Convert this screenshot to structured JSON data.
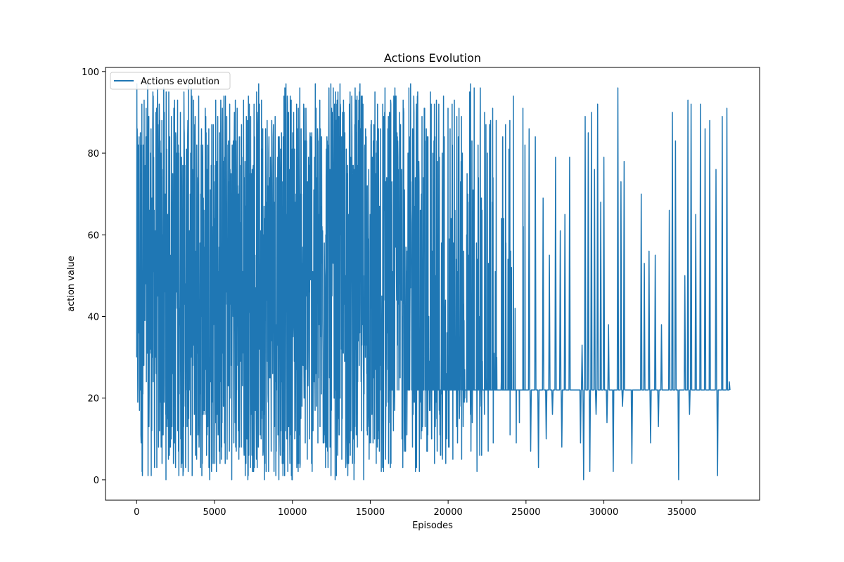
{
  "chart_data": {
    "type": "line",
    "title": "Actions Evolution",
    "xlabel": "Episodes",
    "ylabel": "action value",
    "xlim": [
      -2000,
      40000
    ],
    "ylim": [
      -5,
      101
    ],
    "xticks": [
      0,
      5000,
      10000,
      15000,
      20000,
      25000,
      30000,
      35000
    ],
    "yticks": [
      0,
      20,
      40,
      60,
      80,
      100
    ],
    "grid": false,
    "legend": {
      "placement": "top-left",
      "entries": [
        "Actions evolution"
      ]
    },
    "series": [
      {
        "name": "Actions evolution",
        "color": "#1f77b4",
        "x_range": [
          0,
          38100
        ],
        "y_range": [
          0,
          97
        ],
        "dominant_value": 22,
        "description_points": {
          "x": [
            0,
            2500,
            5000,
            7500,
            10000,
            12500,
            15000,
            15500,
            17500,
            20000,
            22500,
            25000,
            27500,
            30000,
            32500,
            35000,
            37500,
            38100
          ],
          "y_max": [
            97,
            97,
            97,
            97,
            97,
            97,
            97,
            97,
            97,
            97,
            97,
            96,
            95,
            96,
            80,
            93,
            92,
            91
          ],
          "y_min": [
            0,
            0,
            0,
            0,
            0,
            0,
            0,
            0,
            1,
            1,
            1,
            3,
            8,
            2,
            4,
            0,
            1,
            22
          ]
        },
        "spikes": [
          [
            25200,
            86
          ],
          [
            25600,
            84
          ],
          [
            26100,
            69
          ],
          [
            26500,
            55
          ],
          [
            26900,
            79
          ],
          [
            27200,
            61
          ],
          [
            27500,
            65
          ],
          [
            27800,
            79
          ],
          [
            28600,
            33
          ],
          [
            28800,
            89
          ],
          [
            29000,
            85
          ],
          [
            29200,
            90
          ],
          [
            29400,
            76
          ],
          [
            29600,
            92
          ],
          [
            29800,
            68
          ],
          [
            30000,
            79
          ],
          [
            30300,
            38
          ],
          [
            30900,
            96
          ],
          [
            31100,
            73
          ],
          [
            31300,
            78
          ],
          [
            32400,
            70
          ],
          [
            32600,
            53
          ],
          [
            32900,
            56
          ],
          [
            33300,
            55
          ],
          [
            33700,
            38
          ],
          [
            34200,
            66
          ],
          [
            34400,
            90
          ],
          [
            34600,
            83
          ],
          [
            35200,
            50
          ],
          [
            35400,
            93
          ],
          [
            35600,
            92
          ],
          [
            35900,
            65
          ],
          [
            36200,
            92
          ],
          [
            36500,
            86
          ],
          [
            36800,
            88
          ],
          [
            37200,
            76
          ],
          [
            37600,
            89
          ],
          [
            37900,
            91
          ]
        ],
        "dips": [
          [
            25300,
            7
          ],
          [
            25800,
            3
          ],
          [
            26300,
            10
          ],
          [
            26700,
            16
          ],
          [
            27300,
            8
          ],
          [
            28500,
            9
          ],
          [
            28700,
            0
          ],
          [
            29100,
            2
          ],
          [
            29500,
            16
          ],
          [
            30200,
            14
          ],
          [
            30600,
            2
          ],
          [
            31200,
            18
          ],
          [
            31800,
            4
          ],
          [
            33000,
            9
          ],
          [
            33500,
            13
          ],
          [
            34800,
            0
          ],
          [
            35500,
            16
          ],
          [
            36800,
            5
          ],
          [
            37300,
            1
          ]
        ]
      }
    ]
  }
}
